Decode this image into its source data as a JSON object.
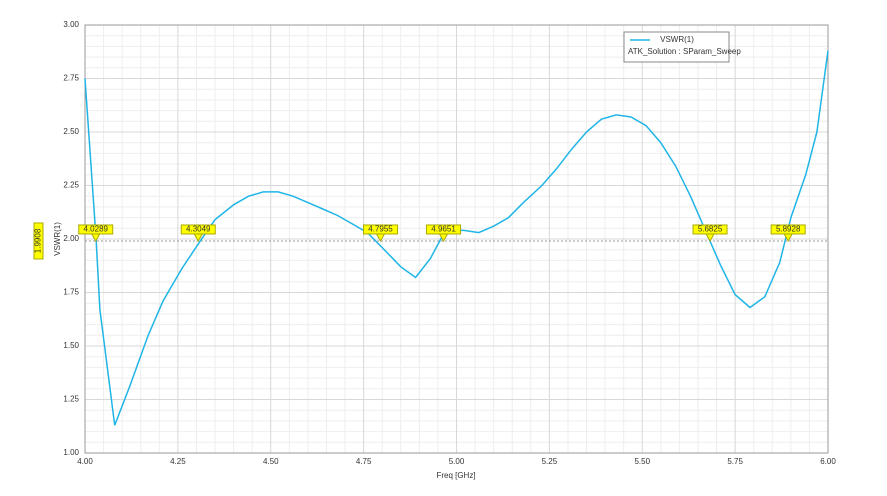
{
  "chart_data": {
    "type": "line",
    "x_label": "Freq [GHz]",
    "y_label": "VSWR(1)",
    "legend_subtitle": "ATK_Solution : SParam_Sweep",
    "xlim": [
      4.0,
      6.0
    ],
    "ylim": [
      1.0,
      3.0
    ],
    "xticks": [
      {
        "value": 4.0,
        "label": "4.00"
      },
      {
        "value": 4.25,
        "label": "4.25"
      },
      {
        "value": 4.5,
        "label": "4.50"
      },
      {
        "value": 4.75,
        "label": "4.75"
      },
      {
        "value": 5.0,
        "label": "5.00"
      },
      {
        "value": 5.25,
        "label": "5.25"
      },
      {
        "value": 5.5,
        "label": "5.50"
      },
      {
        "value": 5.75,
        "label": "5.75"
      },
      {
        "value": 6.0,
        "label": "6.00"
      }
    ],
    "yticks": [
      {
        "value": 1.0,
        "label": "1.00"
      },
      {
        "value": 1.25,
        "label": "1.25"
      },
      {
        "value": 1.5,
        "label": "1.50"
      },
      {
        "value": 1.75,
        "label": "1.75"
      },
      {
        "value": 2.0,
        "label": "2.00"
      },
      {
        "value": 2.25,
        "label": "2.25"
      },
      {
        "value": 2.5,
        "label": "2.50"
      },
      {
        "value": 2.75,
        "label": "2.75"
      },
      {
        "value": 3.0,
        "label": "3.00"
      }
    ],
    "grid": true,
    "x": [
      4.0,
      4.03,
      4.04,
      4.08,
      4.12,
      4.17,
      4.21,
      4.26,
      4.31,
      4.35,
      4.4,
      4.44,
      4.48,
      4.52,
      4.56,
      4.6,
      4.64,
      4.68,
      4.72,
      4.76,
      4.8,
      4.85,
      4.89,
      4.93,
      4.97,
      5.02,
      5.06,
      5.1,
      5.14,
      5.18,
      5.23,
      5.27,
      5.31,
      5.35,
      5.39,
      5.43,
      5.47,
      5.51,
      5.55,
      5.59,
      5.63,
      5.67,
      5.71,
      5.75,
      5.79,
      5.83,
      5.87,
      5.9,
      5.94,
      5.97,
      6.0
    ],
    "series": [
      {
        "name": "VSWR(1)",
        "color": "#1fb5e6",
        "values": [
          2.75,
          2.0,
          1.67,
          1.13,
          1.31,
          1.55,
          1.71,
          1.86,
          1.99,
          2.09,
          2.16,
          2.2,
          2.22,
          2.22,
          2.2,
          2.17,
          2.14,
          2.11,
          2.07,
          2.03,
          1.96,
          1.87,
          1.82,
          1.91,
          2.04,
          2.04,
          2.03,
          2.06,
          2.1,
          2.17,
          2.25,
          2.33,
          2.42,
          2.5,
          2.56,
          2.58,
          2.57,
          2.53,
          2.45,
          2.34,
          2.2,
          2.04,
          1.88,
          1.74,
          1.68,
          1.73,
          1.89,
          2.1,
          2.3,
          2.5,
          2.88
        ]
      }
    ],
    "y_marker": 1.9908,
    "x_markers": [
      4.0289,
      4.3049,
      4.7955,
      4.9651,
      5.6825,
      5.8928
    ]
  }
}
